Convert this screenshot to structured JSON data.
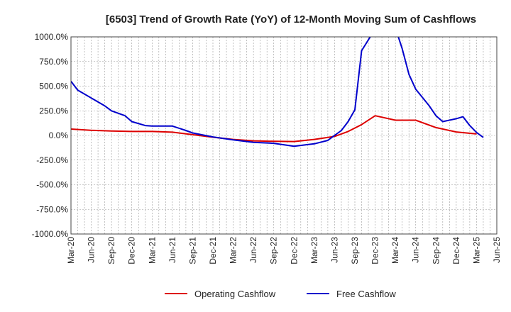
{
  "chart_data": {
    "type": "line",
    "title": "[6503]  Trend of Growth Rate (YoY) of 12-Month Moving Sum of Cashflows",
    "xlabel": "",
    "ylabel": "",
    "ylim": [
      -1000,
      1000
    ],
    "y_ticks": [
      {
        "value": 1000,
        "label": "1000.0%"
      },
      {
        "value": 750,
        "label": "750.0%"
      },
      {
        "value": 500,
        "label": "500.0%"
      },
      {
        "value": 250,
        "label": "250.0%"
      },
      {
        "value": 0,
        "label": "0.0%"
      },
      {
        "value": -250,
        "label": "-250.0%"
      },
      {
        "value": -500,
        "label": "-500.0%"
      },
      {
        "value": -750,
        "label": "-750.0%"
      },
      {
        "value": -1000,
        "label": "-1000.0%"
      }
    ],
    "x_start": "Mar-20",
    "x_ticks": [
      "Mar-20",
      "Jun-20",
      "Sep-20",
      "Dec-20",
      "Mar-21",
      "Jun-21",
      "Sep-21",
      "Dec-21",
      "Mar-22",
      "Jun-22",
      "Sep-22",
      "Dec-22",
      "Mar-23",
      "Jun-23",
      "Sep-23",
      "Dec-23",
      "Mar-24",
      "Jun-24",
      "Sep-24",
      "Dec-24",
      "Mar-25",
      "Jun-25"
    ],
    "grid": true,
    "legend_position": "bottom",
    "series": [
      {
        "name": "Operating Cashflow",
        "color": "#dd0000",
        "points": [
          [
            "Mar-20",
            65
          ],
          [
            "Jun-20",
            52
          ],
          [
            "Sep-20",
            45
          ],
          [
            "Dec-20",
            40
          ],
          [
            "Mar-21",
            40
          ],
          [
            "Jun-21",
            33
          ],
          [
            "Sep-21",
            8
          ],
          [
            "Dec-21",
            -18
          ],
          [
            "Mar-22",
            -40
          ],
          [
            "Jun-22",
            -55
          ],
          [
            "Sep-22",
            -60
          ],
          [
            "Dec-22",
            -62
          ],
          [
            "Mar-23",
            -40
          ],
          [
            "Jun-23",
            -10
          ],
          [
            "Aug-23",
            40
          ],
          [
            "Oct-23",
            110
          ],
          [
            "Dec-23",
            200
          ],
          [
            "Mar-24",
            155
          ],
          [
            "Jun-24",
            155
          ],
          [
            "Sep-24",
            80
          ],
          [
            "Dec-24",
            35
          ],
          [
            "Mar-25",
            15
          ]
        ]
      },
      {
        "name": "Free Cashflow",
        "color": "#0000cc",
        "points": [
          [
            "Mar-20",
            550
          ],
          [
            "Apr-20",
            460
          ],
          [
            "Jun-20",
            380
          ],
          [
            "Aug-20",
            300
          ],
          [
            "Sep-20",
            250
          ],
          [
            "Nov-20",
            200
          ],
          [
            "Dec-20",
            140
          ],
          [
            "Feb-21",
            100
          ],
          [
            "Mar-21",
            95
          ],
          [
            "Jun-21",
            95
          ],
          [
            "Aug-21",
            50
          ],
          [
            "Sep-21",
            25
          ],
          [
            "Dec-21",
            -15
          ],
          [
            "Mar-22",
            -45
          ],
          [
            "Jun-22",
            -70
          ],
          [
            "Sep-22",
            -80
          ],
          [
            "Dec-22",
            -110
          ],
          [
            "Mar-23",
            -85
          ],
          [
            "May-23",
            -50
          ],
          [
            "Jun-23",
            0
          ],
          [
            "Jul-23",
            50
          ],
          [
            "Aug-23",
            140
          ],
          [
            "Sep-23",
            260
          ],
          [
            "Oct-23",
            860
          ],
          [
            "Feb-24",
            1300
          ],
          [
            "Apr-24",
            880
          ],
          [
            "May-24",
            620
          ],
          [
            "Jun-24",
            470
          ],
          [
            "Aug-24",
            300
          ],
          [
            "Sep-24",
            200
          ],
          [
            "Oct-24",
            140
          ],
          [
            "Dec-24",
            170
          ],
          [
            "Jan-25",
            190
          ],
          [
            "Feb-25",
            100
          ],
          [
            "Mar-25",
            30
          ],
          [
            "Apr-25",
            -20
          ]
        ]
      }
    ]
  }
}
